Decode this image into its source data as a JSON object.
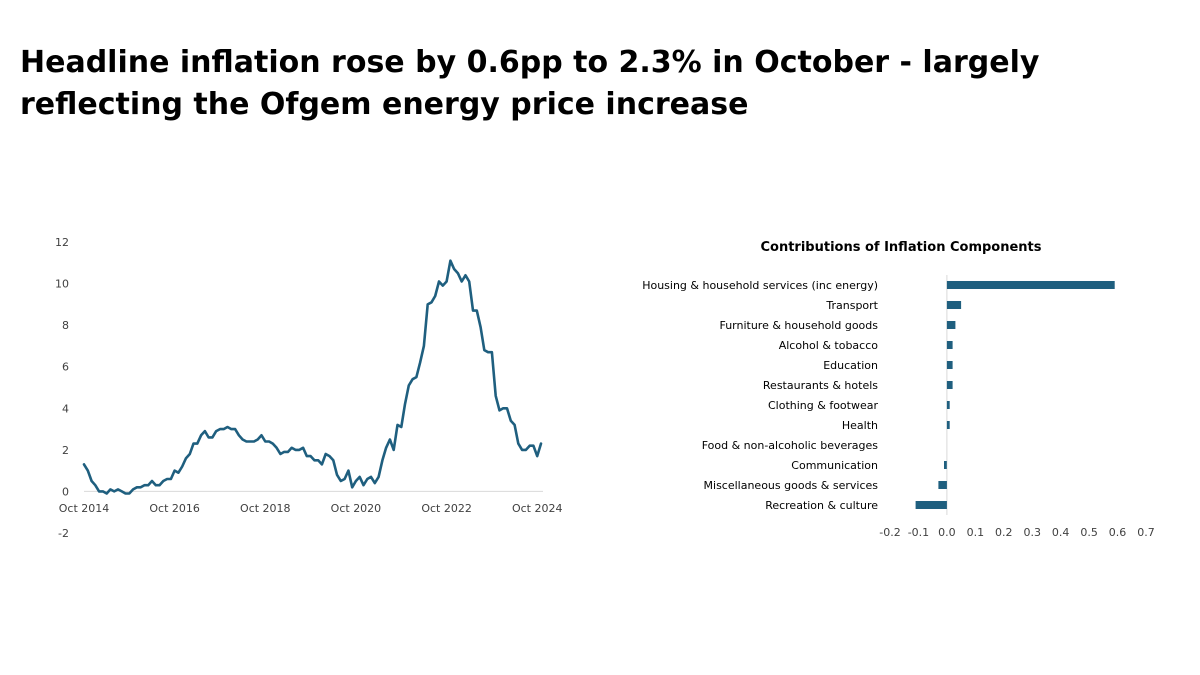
{
  "headline": "Headline inflation rose by 0.6pp to 2.3% in October -  largely reflecting the Ofgem energy price increase",
  "colors": {
    "series": "#1f5f7f",
    "axis": "#d9d9d9",
    "text": "#000000"
  },
  "chart_data": [
    {
      "type": "line",
      "title": "",
      "xlabel": "",
      "ylabel": "",
      "ylim": [
        -2,
        12
      ],
      "yticks": [
        "-2",
        "0",
        "2",
        "4",
        "6",
        "8",
        "10",
        "12"
      ],
      "xticks": [
        "Oct 2014",
        "Oct 2016",
        "Oct 2018",
        "Oct 2020",
        "Oct 2022",
        "Oct 2024"
      ],
      "grid": false,
      "series": [
        {
          "values": [
            1.3,
            1.0,
            0.5,
            0.3,
            0.0,
            0.0,
            -0.1,
            0.1,
            0.0,
            0.1,
            0.0,
            -0.1,
            -0.1,
            0.1,
            0.2,
            0.2,
            0.3,
            0.3,
            0.5,
            0.3,
            0.3,
            0.5,
            0.6,
            0.6,
            1.0,
            0.9,
            1.2,
            1.6,
            1.8,
            2.3,
            2.3,
            2.7,
            2.9,
            2.6,
            2.6,
            2.9,
            3.0,
            3.0,
            3.1,
            3.0,
            3.0,
            2.7,
            2.5,
            2.4,
            2.4,
            2.4,
            2.5,
            2.7,
            2.4,
            2.4,
            2.3,
            2.1,
            1.8,
            1.9,
            1.9,
            2.1,
            2.0,
            2.0,
            2.1,
            1.7,
            1.7,
            1.5,
            1.5,
            1.3,
            1.8,
            1.7,
            1.5,
            0.8,
            0.5,
            0.6,
            1.0,
            0.2,
            0.5,
            0.7,
            0.3,
            0.6,
            0.7,
            0.4,
            0.7,
            1.5,
            2.1,
            2.5,
            2.0,
            3.2,
            3.1,
            4.2,
            5.1,
            5.4,
            5.5,
            6.2,
            7.0,
            9.0,
            9.1,
            9.4,
            10.1,
            9.9,
            10.1,
            11.1,
            10.7,
            10.5,
            10.1,
            10.4,
            10.1,
            8.7,
            8.7,
            7.9,
            6.8,
            6.7,
            6.7,
            4.6,
            3.9,
            4.0,
            4.0,
            3.4,
            3.2,
            2.3,
            2.0,
            2.0,
            2.2,
            2.2,
            1.7,
            2.3
          ]
        }
      ]
    },
    {
      "type": "bar",
      "orientation": "horizontal",
      "title": "Contributions of Inflation Components",
      "xlim": [
        -0.2,
        0.7
      ],
      "xticks": [
        "-0.2",
        "-0.1",
        "0.0",
        "0.1",
        "0.2",
        "0.3",
        "0.4",
        "0.5",
        "0.6",
        "0.7"
      ],
      "grid": false,
      "categories": [
        "Housing & household services (inc energy)",
        "Transport",
        "Furniture & household goods",
        "Alcohol & tobacco",
        "Education",
        "Restaurants & hotels",
        "Clothing & footwear",
        "Health",
        "Food & non-alcoholic beverages",
        "Communication",
        "Miscellaneous goods & services",
        "Recreation & culture"
      ],
      "values": [
        0.59,
        0.05,
        0.03,
        0.02,
        0.02,
        0.02,
        0.01,
        0.01,
        0.0,
        -0.01,
        -0.03,
        -0.11
      ]
    }
  ]
}
